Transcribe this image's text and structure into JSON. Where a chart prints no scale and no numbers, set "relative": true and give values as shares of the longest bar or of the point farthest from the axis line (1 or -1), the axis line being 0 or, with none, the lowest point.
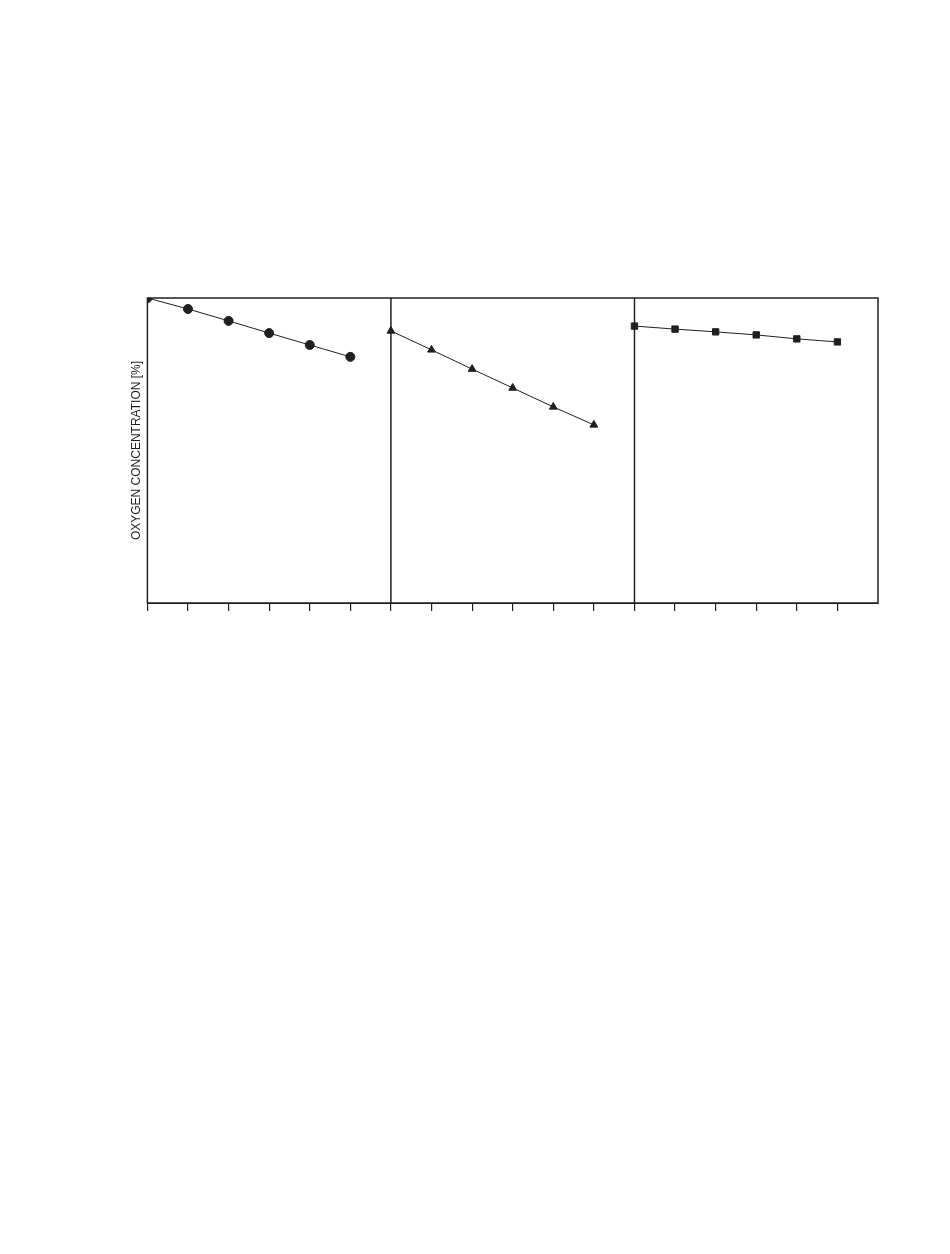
{
  "chart_data": {
    "type": "line",
    "ylabel": "OXYGEN CONCENTRATION [%]",
    "relative": true,
    "grid": false,
    "legend": false,
    "line_style": "solid",
    "categories": [
      null,
      null,
      null,
      null,
      null,
      null,
      null,
      null,
      null,
      null,
      null,
      null,
      null,
      null,
      null,
      null,
      null,
      null
    ],
    "series": [
      {
        "color": "#231f20",
        "marker": "circle",
        "values": [
          1,
          0.964,
          0.925,
          0.885,
          0.846,
          0.807,
          null,
          null,
          null,
          null,
          null,
          null,
          null,
          null,
          null,
          null,
          null,
          null
        ]
      },
      {
        "color": "#231f20",
        "marker": "triangle",
        "values": [
          null,
          null,
          null,
          null,
          null,
          null,
          0.892,
          0.83,
          0.767,
          0.705,
          0.643,
          0.584,
          null,
          null,
          null,
          null,
          null,
          null
        ]
      },
      {
        "color": "#231f20",
        "marker": "square",
        "values": [
          null,
          null,
          null,
          null,
          null,
          null,
          null,
          null,
          null,
          null,
          null,
          null,
          0.908,
          0.898,
          0.889,
          0.879,
          0.866,
          0.856
        ]
      }
    ]
  }
}
